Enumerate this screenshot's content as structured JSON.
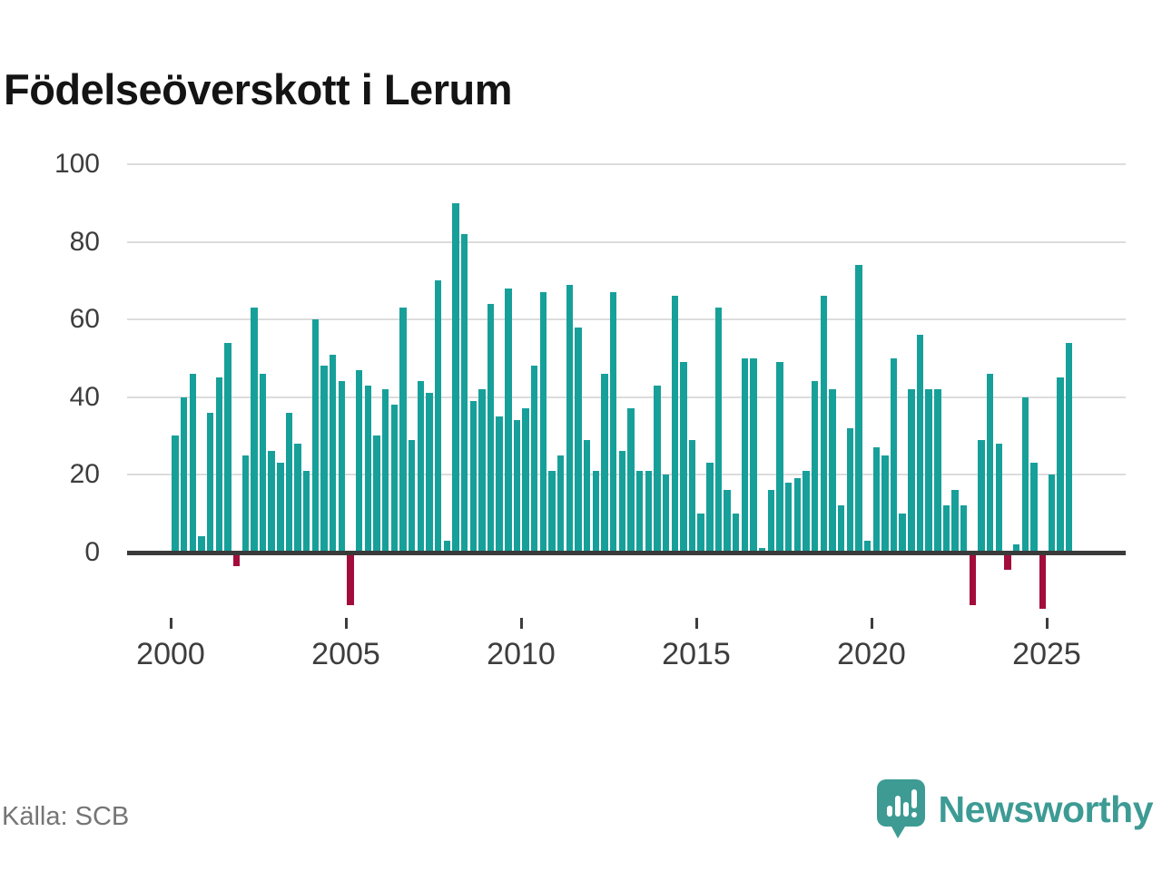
{
  "title": "Födelseöverskott i Lerum",
  "source": "Källa: SCB",
  "branding": {
    "name": "Newsworthy"
  },
  "colors": {
    "bar_positive": "#17a09a",
    "bar_negative": "#a30d3c",
    "axis_line": "#3a3a3a",
    "gridline": "#dcdcdc",
    "axis_text": "#3d3d3d",
    "source_text": "#757575",
    "brand_teal": "#3d9b94",
    "title_text": "#141414"
  },
  "chart_data": {
    "type": "bar",
    "title": "Födelseöverskott i Lerum",
    "frequency": "quarterly",
    "x_start": "2000 Q1",
    "x_end": "2025 Q3",
    "ylabel": "",
    "xlabel": "",
    "ylim": [
      -16,
      100
    ],
    "y_ticks": [
      0,
      20,
      40,
      60,
      80,
      100
    ],
    "x_tick_years": [
      2000,
      2005,
      2010,
      2015,
      2020,
      2025
    ],
    "grid": true,
    "legend": "none",
    "series": [
      {
        "name": "Födelseöverskott",
        "by_year": [
          {
            "year": 2000,
            "quarters": [
              30,
              40,
              46,
              4
            ]
          },
          {
            "year": 2001,
            "quarters": [
              36,
              45,
              54,
              -3
            ]
          },
          {
            "year": 2002,
            "quarters": [
              25,
              63,
              46,
              26
            ]
          },
          {
            "year": 2003,
            "quarters": [
              23,
              36,
              28,
              21
            ]
          },
          {
            "year": 2004,
            "quarters": [
              60,
              48,
              51,
              44
            ]
          },
          {
            "year": 2005,
            "quarters": [
              -13,
              47,
              43,
              30
            ]
          },
          {
            "year": 2006,
            "quarters": [
              42,
              38,
              63,
              29
            ]
          },
          {
            "year": 2007,
            "quarters": [
              44,
              41,
              70,
              3
            ]
          },
          {
            "year": 2008,
            "quarters": [
              90,
              82,
              39,
              42
            ]
          },
          {
            "year": 2009,
            "quarters": [
              64,
              35,
              68,
              34
            ]
          },
          {
            "year": 2010,
            "quarters": [
              37,
              48,
              67,
              21
            ]
          },
          {
            "year": 2011,
            "quarters": [
              25,
              69,
              58,
              29
            ]
          },
          {
            "year": 2012,
            "quarters": [
              21,
              46,
              67,
              26
            ]
          },
          {
            "year": 2013,
            "quarters": [
              37,
              21,
              21,
              43
            ]
          },
          {
            "year": 2014,
            "quarters": [
              20,
              66,
              49,
              29
            ]
          },
          {
            "year": 2015,
            "quarters": [
              10,
              23,
              63,
              16
            ]
          },
          {
            "year": 2016,
            "quarters": [
              10,
              50,
              50,
              1
            ]
          },
          {
            "year": 2017,
            "quarters": [
              16,
              49,
              18,
              19
            ]
          },
          {
            "year": 2018,
            "quarters": [
              21,
              44,
              66,
              42
            ]
          },
          {
            "year": 2019,
            "quarters": [
              12,
              32,
              74,
              3
            ]
          },
          {
            "year": 2020,
            "quarters": [
              27,
              25,
              50,
              10
            ]
          },
          {
            "year": 2021,
            "quarters": [
              42,
              56,
              42,
              42
            ]
          },
          {
            "year": 2022,
            "quarters": [
              12,
              16,
              12,
              -13
            ]
          },
          {
            "year": 2023,
            "quarters": [
              29,
              46,
              28,
              -4
            ]
          },
          {
            "year": 2024,
            "quarters": [
              2,
              40,
              23,
              -14
            ]
          },
          {
            "year": 2025,
            "quarters": [
              20,
              45,
              54
            ]
          }
        ]
      }
    ]
  }
}
